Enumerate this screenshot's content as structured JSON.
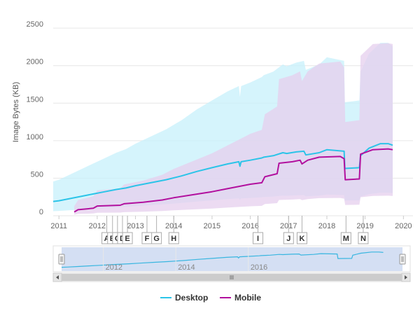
{
  "chart_data": {
    "type": "line",
    "title": "",
    "ylabel": "Image Bytes (KB)",
    "xlabel": "",
    "ylim": [
      0,
      2800
    ],
    "xlim": [
      2010.85,
      2020.25
    ],
    "y_ticks": [
      "0",
      "500",
      "1000",
      "1500",
      "2000",
      "2500"
    ],
    "y_tick_values": [
      0,
      500,
      1000,
      1500,
      2000,
      2500
    ],
    "x_ticks": [
      "2011",
      "2012",
      "2013",
      "2014",
      "2015",
      "2016",
      "2017",
      "2018",
      "2019",
      "2020"
    ],
    "x_tick_values": [
      2011,
      2012,
      2013,
      2014,
      2015,
      2016,
      2017,
      2018,
      2019,
      2020
    ],
    "grid": "horizontal",
    "legend_position": "bottom-center",
    "series": [
      {
        "name": "Desktop",
        "color": "#2bc4e8",
        "x": [
          2010.85,
          2011.0,
          2011.3,
          2011.6,
          2011.9,
          2012.2,
          2012.5,
          2012.75,
          2013.0,
          2013.4,
          2013.8,
          2014.2,
          2014.6,
          2015.0,
          2015.4,
          2015.7,
          2015.73,
          2015.76,
          2016.0,
          2016.3,
          2016.35,
          2016.6,
          2016.85,
          2016.95,
          2017.2,
          2017.4,
          2017.45,
          2017.8,
          2018.0,
          2018.45,
          2018.47,
          2018.85,
          2018.88,
          2019.1,
          2019.4,
          2019.6,
          2019.72
        ],
        "y": [
          190,
          200,
          230,
          260,
          290,
          320,
          350,
          370,
          400,
          440,
          480,
          530,
          590,
          640,
          690,
          720,
          660,
          720,
          740,
          770,
          780,
          800,
          840,
          830,
          850,
          860,
          810,
          840,
          880,
          860,
          630,
          640,
          800,
          900,
          960,
          960,
          940
        ]
      },
      {
        "name": "Mobile",
        "color": "#b2109e",
        "x": [
          2011.4,
          2011.5,
          2011.9,
          2012.0,
          2012.6,
          2012.7,
          2013.2,
          2013.7,
          2014.0,
          2014.5,
          2015.0,
          2015.4,
          2015.8,
          2016.0,
          2016.3,
          2016.38,
          2016.7,
          2016.75,
          2017.1,
          2017.3,
          2017.35,
          2017.5,
          2017.8,
          2018.35,
          2018.45,
          2018.48,
          2018.85,
          2018.88,
          2019.2,
          2019.6,
          2019.72
        ],
        "y": [
          50,
          80,
          100,
          130,
          140,
          160,
          180,
          210,
          240,
          280,
          320,
          360,
          400,
          420,
          440,
          520,
          560,
          700,
          720,
          740,
          690,
          740,
          780,
          790,
          760,
          480,
          490,
          820,
          880,
          890,
          880
        ]
      }
    ],
    "annotations": [
      "A",
      "B",
      "C",
      "D",
      "E",
      "F",
      "G",
      "H",
      "I",
      "J",
      "K",
      "M",
      "N"
    ],
    "annotation_x": [
      2012.25,
      2012.4,
      2012.53,
      2012.66,
      2012.79,
      2013.3,
      2013.55,
      2014.0,
      2016.2,
      2017.0,
      2017.35,
      2018.5,
      2018.95
    ],
    "navigator_ticks": [
      "2012",
      "2014",
      "2016"
    ],
    "navigator_tick_values": [
      2012,
      2014,
      2016
    ]
  }
}
